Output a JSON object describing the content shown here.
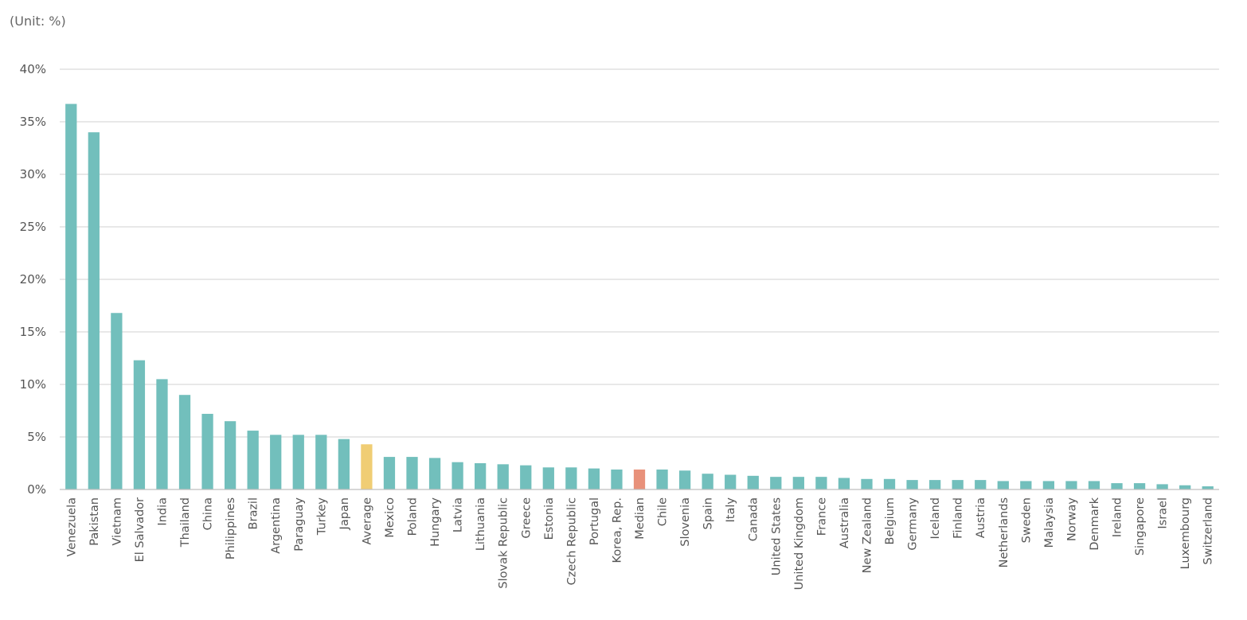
{
  "chart_data": {
    "type": "bar",
    "unit_note": "(Unit: %)",
    "title": "",
    "xlabel": "",
    "ylabel": "",
    "ylim": [
      0,
      40
    ],
    "yticks": [
      0,
      5,
      10,
      15,
      20,
      25,
      30,
      35,
      40
    ],
    "ytick_labels": [
      "0%",
      "5%",
      "10%",
      "15%",
      "20%",
      "25%",
      "30%",
      "35%",
      "40%"
    ],
    "grid": true,
    "legend": "none",
    "colors": {
      "default": "#72bfbc",
      "average": "#f0cd74",
      "median": "#e8917a",
      "grid": "#d9d9d9",
      "axis": "#bfbfbf"
    },
    "categories": [
      "Venezuela",
      "Pakistan",
      "Vietnam",
      "El Salvador",
      "India",
      "Thailand",
      "China",
      "Philippines",
      "Brazil",
      "Argentina",
      "Paraguay",
      "Turkey",
      "Japan",
      "Average",
      "Mexico",
      "Poland",
      "Hungary",
      "Latvia",
      "Lithuania",
      "Slovak Republic",
      "Greece",
      "Estonia",
      "Czech Republic",
      "Portugal",
      "Korea, Rep.",
      "Median",
      "Chile",
      "Slovenia",
      "Spain",
      "Italy",
      "Canada",
      "United States",
      "United Kingdom",
      "France",
      "Australia",
      "New Zealand",
      "Belgium",
      "Germany",
      "Iceland",
      "Finland",
      "Austria",
      "Netherlands",
      "Sweden",
      "Malaysia",
      "Norway",
      "Denmark",
      "Ireland",
      "Singapore",
      "Israel",
      "Luxembourg",
      "Switzerland"
    ],
    "values": [
      36.7,
      34.0,
      16.8,
      12.3,
      10.5,
      9.0,
      7.2,
      6.5,
      5.6,
      5.2,
      5.2,
      5.2,
      4.8,
      4.3,
      3.1,
      3.1,
      3.0,
      2.6,
      2.5,
      2.4,
      2.3,
      2.1,
      2.1,
      2.0,
      1.9,
      1.9,
      1.9,
      1.8,
      1.5,
      1.4,
      1.3,
      1.2,
      1.2,
      1.2,
      1.1,
      1.0,
      1.0,
      0.9,
      0.9,
      0.9,
      0.9,
      0.8,
      0.8,
      0.8,
      0.8,
      0.8,
      0.6,
      0.6,
      0.5,
      0.4,
      0.3
    ]
  }
}
